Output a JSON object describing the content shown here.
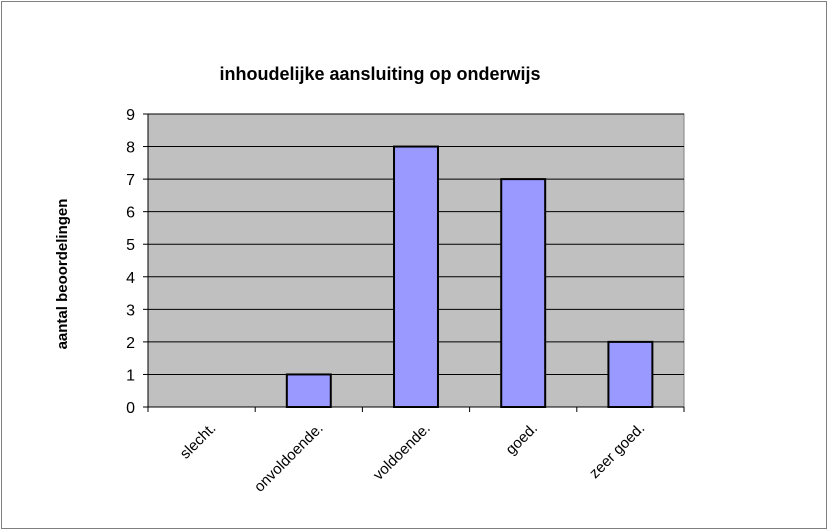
{
  "chart_data": {
    "type": "bar",
    "title": "inhoudelijke aansluiting op onderwijs",
    "xlabel": "",
    "ylabel": "aantal beoordelingen",
    "categories": [
      "slecht.",
      "onvoldoende.",
      "voldoende.",
      "goed.",
      "zeer goed."
    ],
    "values": [
      0,
      1,
      8,
      7,
      2
    ],
    "ylim": [
      0,
      9
    ],
    "yticks": [
      0,
      1,
      2,
      3,
      4,
      5,
      6,
      7,
      8,
      9
    ],
    "grid": true,
    "legend": "none",
    "colors": {
      "plot_background": "#c0c0c0",
      "bar_fill": "#9999ff",
      "bar_stroke": "#000000",
      "grid": "#000000"
    }
  }
}
